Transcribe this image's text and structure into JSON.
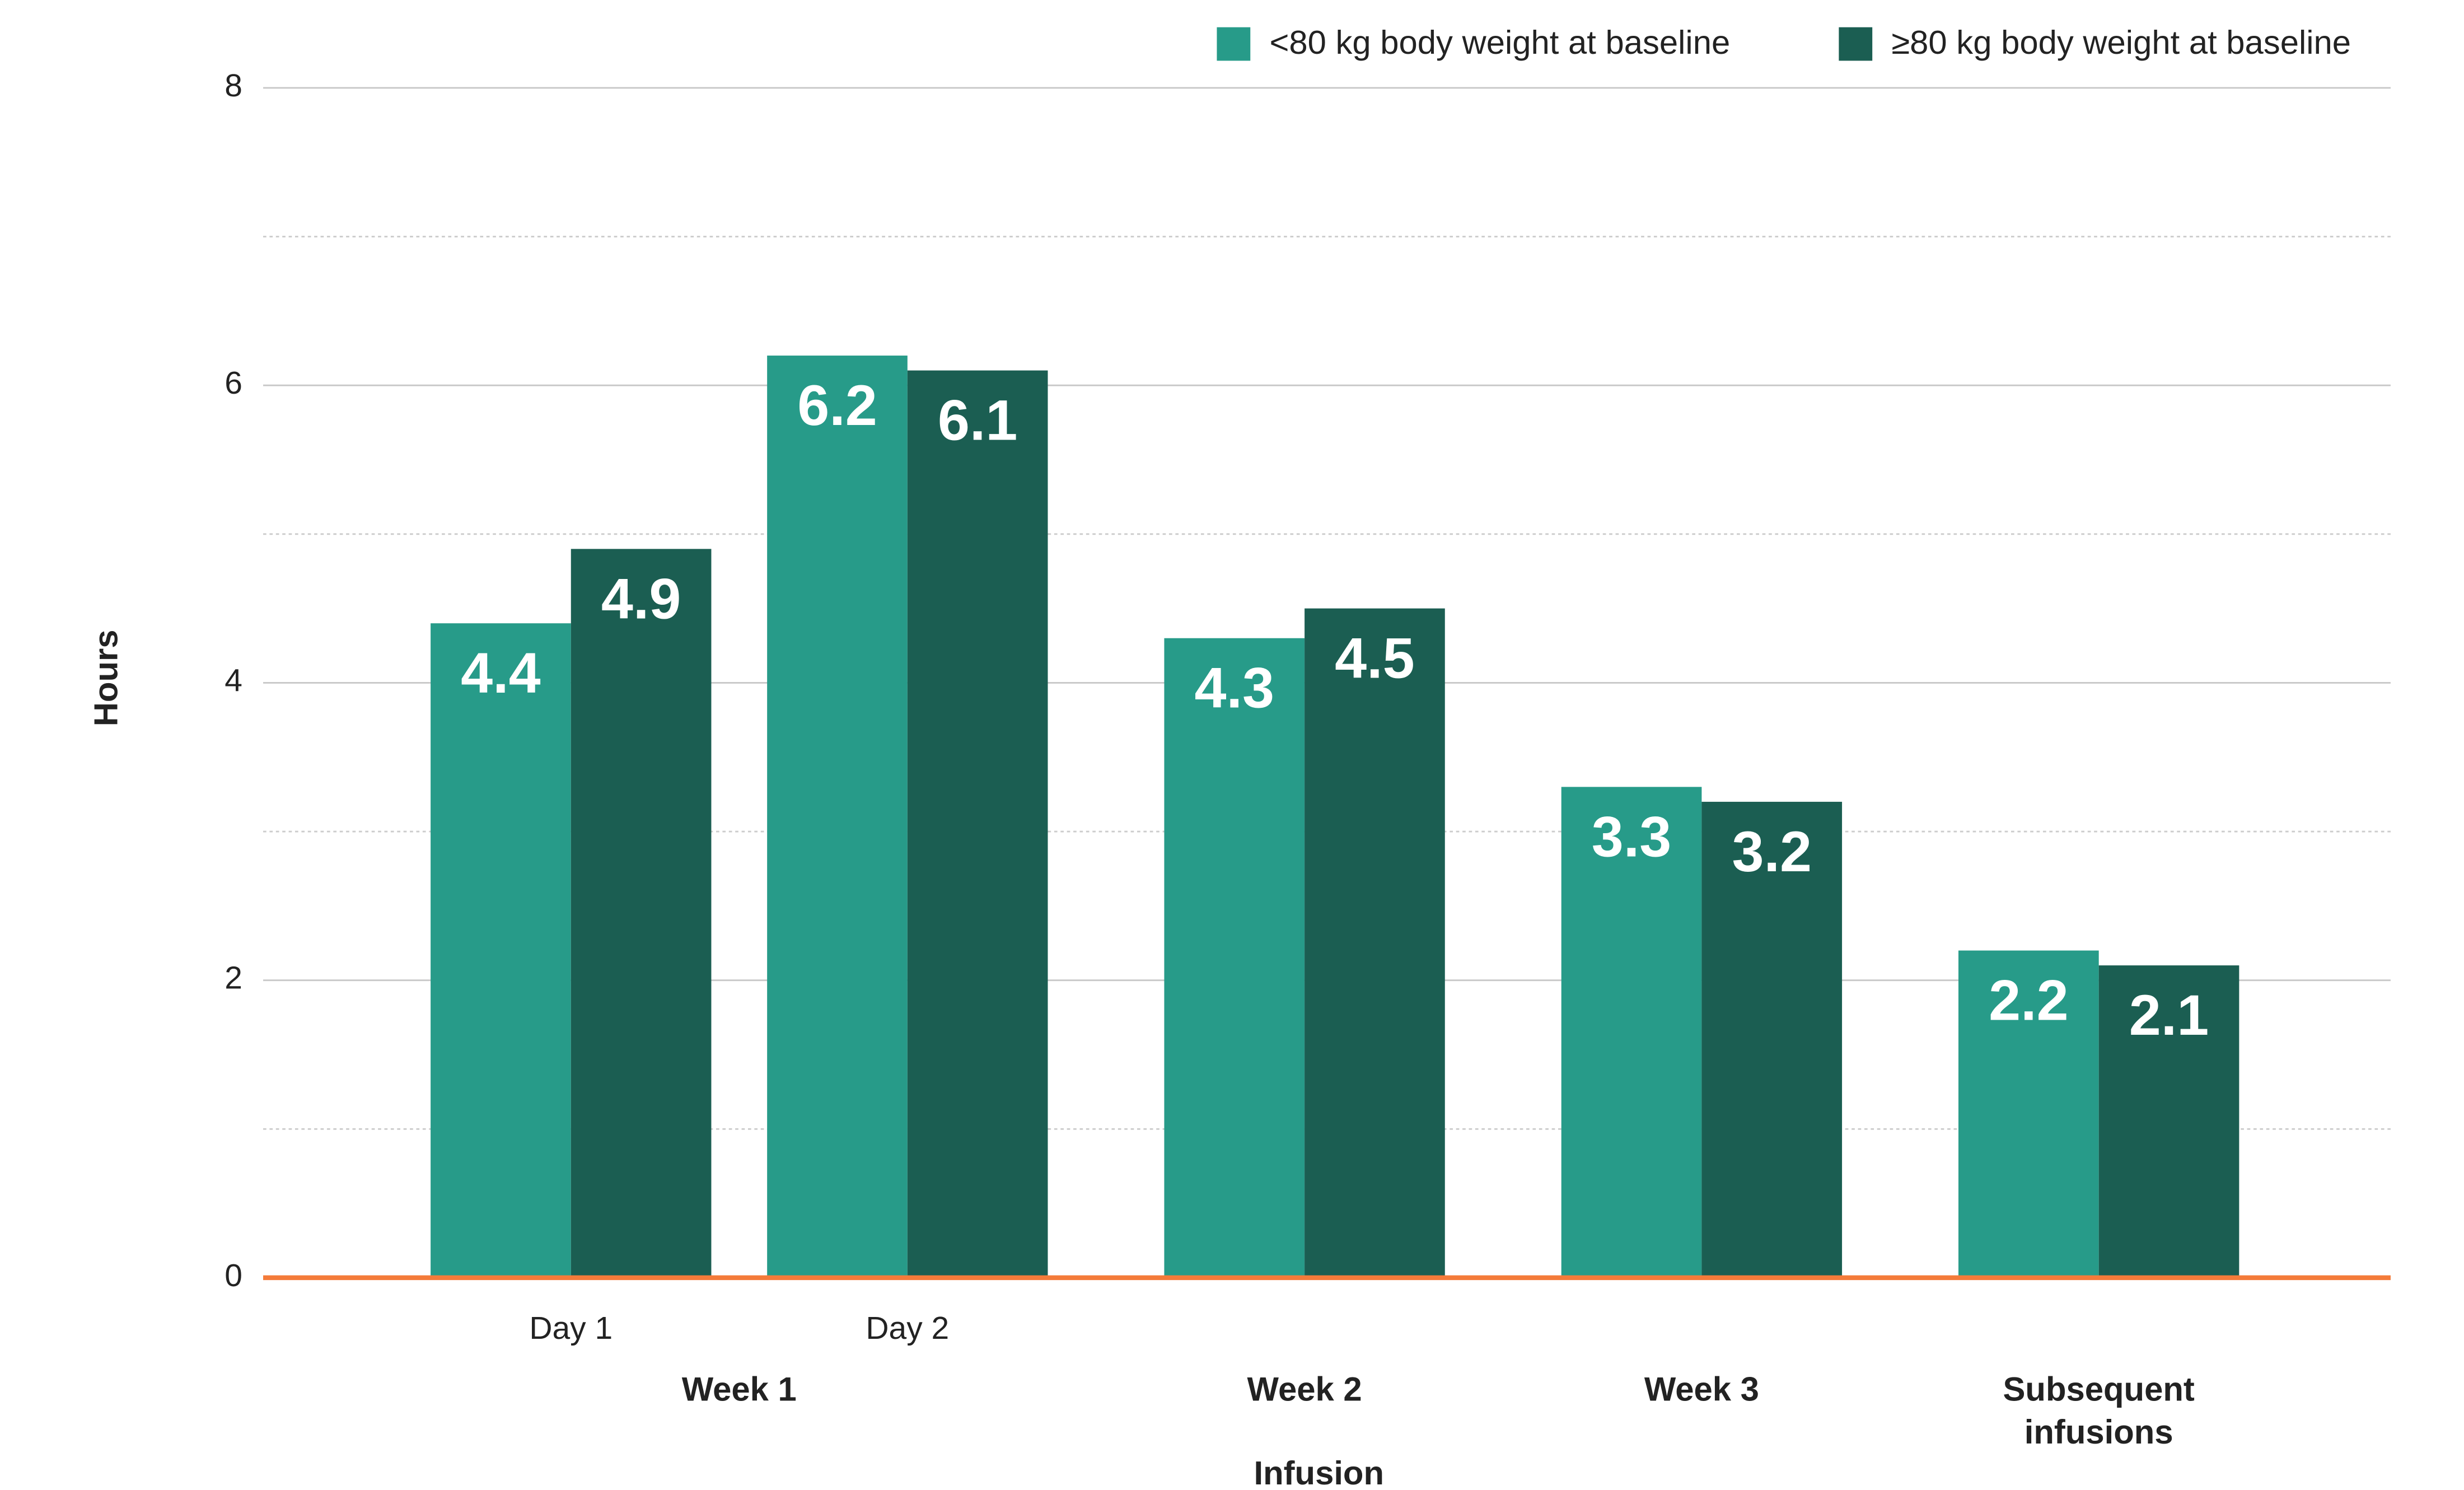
{
  "chart_data": {
    "type": "bar",
    "x_label": "Infusion",
    "y_label": "Hours",
    "groups": [
      {
        "name": "Week 1",
        "categories": [
          "Day 1",
          "Day 2"
        ]
      },
      {
        "name": "Week 2",
        "categories": [
          null
        ]
      },
      {
        "name": "Week 3",
        "categories": [
          null
        ]
      },
      {
        "name": "Subsequent infusions",
        "categories": [
          null
        ]
      }
    ],
    "series": [
      {
        "name": "<80 kg body weight at baseline",
        "color": "#279b89",
        "values": [
          4.4,
          6.2,
          4.3,
          3.3,
          2.2
        ]
      },
      {
        "name": "≥80 kg body weight at baseline",
        "color": "#1b5e52",
        "values": [
          4.9,
          6.1,
          4.5,
          3.2,
          2.1
        ]
      }
    ],
    "ylim": [
      0,
      8
    ],
    "yticks": [
      0,
      2,
      4,
      6,
      8
    ],
    "minor_yticks": [
      1,
      3,
      5,
      7
    ],
    "grid": true,
    "zero_line_color": "#f47b3a",
    "legend": "top-right"
  }
}
